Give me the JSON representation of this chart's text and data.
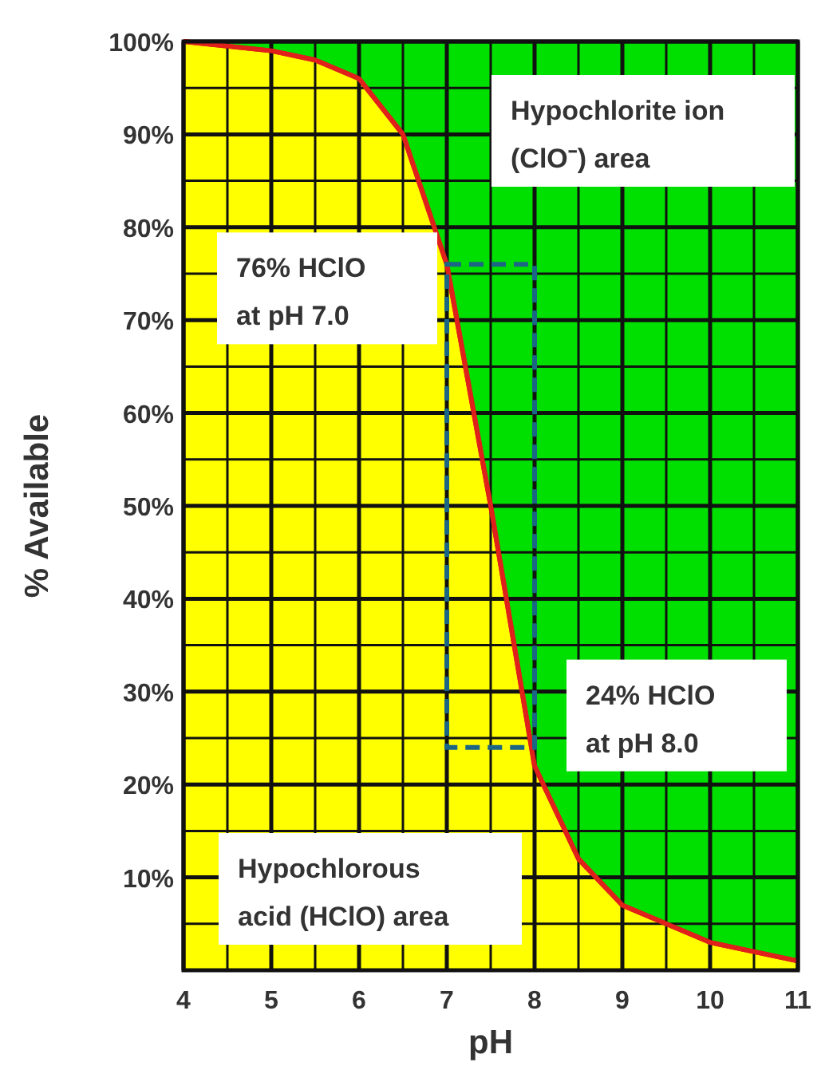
{
  "chart_data": {
    "type": "area",
    "xlabel": "pH",
    "ylabel": "% Available",
    "x": [
      4,
      5,
      5.5,
      6,
      6.5,
      7,
      7.5,
      8,
      8.5,
      9,
      10,
      11
    ],
    "series": [
      {
        "color": "#ffff00",
        "values": [
          100,
          99,
          98,
          96,
          90,
          76,
          50,
          22,
          12,
          7,
          3,
          1
        ]
      }
    ],
    "xlim": [
      4,
      11
    ],
    "xticks": [
      4,
      {
        "value": 4.5,
        "label": null
      },
      5,
      {
        "value": 5.5,
        "label": null
      },
      6,
      {
        "value": 6.5,
        "label": null
      },
      7,
      {
        "value": 7.5,
        "label": null
      },
      8,
      {
        "value": 8.5,
        "label": null
      },
      9,
      {
        "value": 9.5,
        "label": null
      },
      10,
      {
        "value": 10.5,
        "label": null
      },
      11
    ],
    "ylim": [
      0,
      100
    ],
    "yticks": [
      {
        "value": 5,
        "label": null
      },
      {
        "value": 10,
        "label": "10%"
      },
      {
        "value": 15,
        "label": null
      },
      {
        "value": 20,
        "label": "20%"
      },
      {
        "value": 25,
        "label": null
      },
      {
        "value": 30,
        "label": "30%"
      },
      {
        "value": 35,
        "label": null
      },
      {
        "value": 40,
        "label": "40%"
      },
      {
        "value": 45,
        "label": null
      },
      {
        "value": 50,
        "label": "50%"
      },
      {
        "value": 55,
        "label": null
      },
      {
        "value": 60,
        "label": "60%"
      },
      {
        "value": 65,
        "label": null
      },
      {
        "value": 70,
        "label": "70%"
      },
      {
        "value": 75,
        "label": null
      },
      {
        "value": 80,
        "label": "80%"
      },
      {
        "value": 85,
        "label": null
      },
      {
        "value": 90,
        "label": "90%"
      },
      {
        "value": 95,
        "label": null
      },
      {
        "value": 100,
        "label": "100%"
      }
    ],
    "grid": true,
    "annotations": [
      "Hypochlorite ion\n(ClO⁻) area",
      {
        "text": "76% HClO\nat pH 7.0",
        "x": 7,
        "y": 76
      },
      {
        "text": "24% HClO\nat pH 8.0",
        "x": 8,
        "y": 24
      },
      "Hypochlorous\nacid (HClO) area"
    ]
  }
}
